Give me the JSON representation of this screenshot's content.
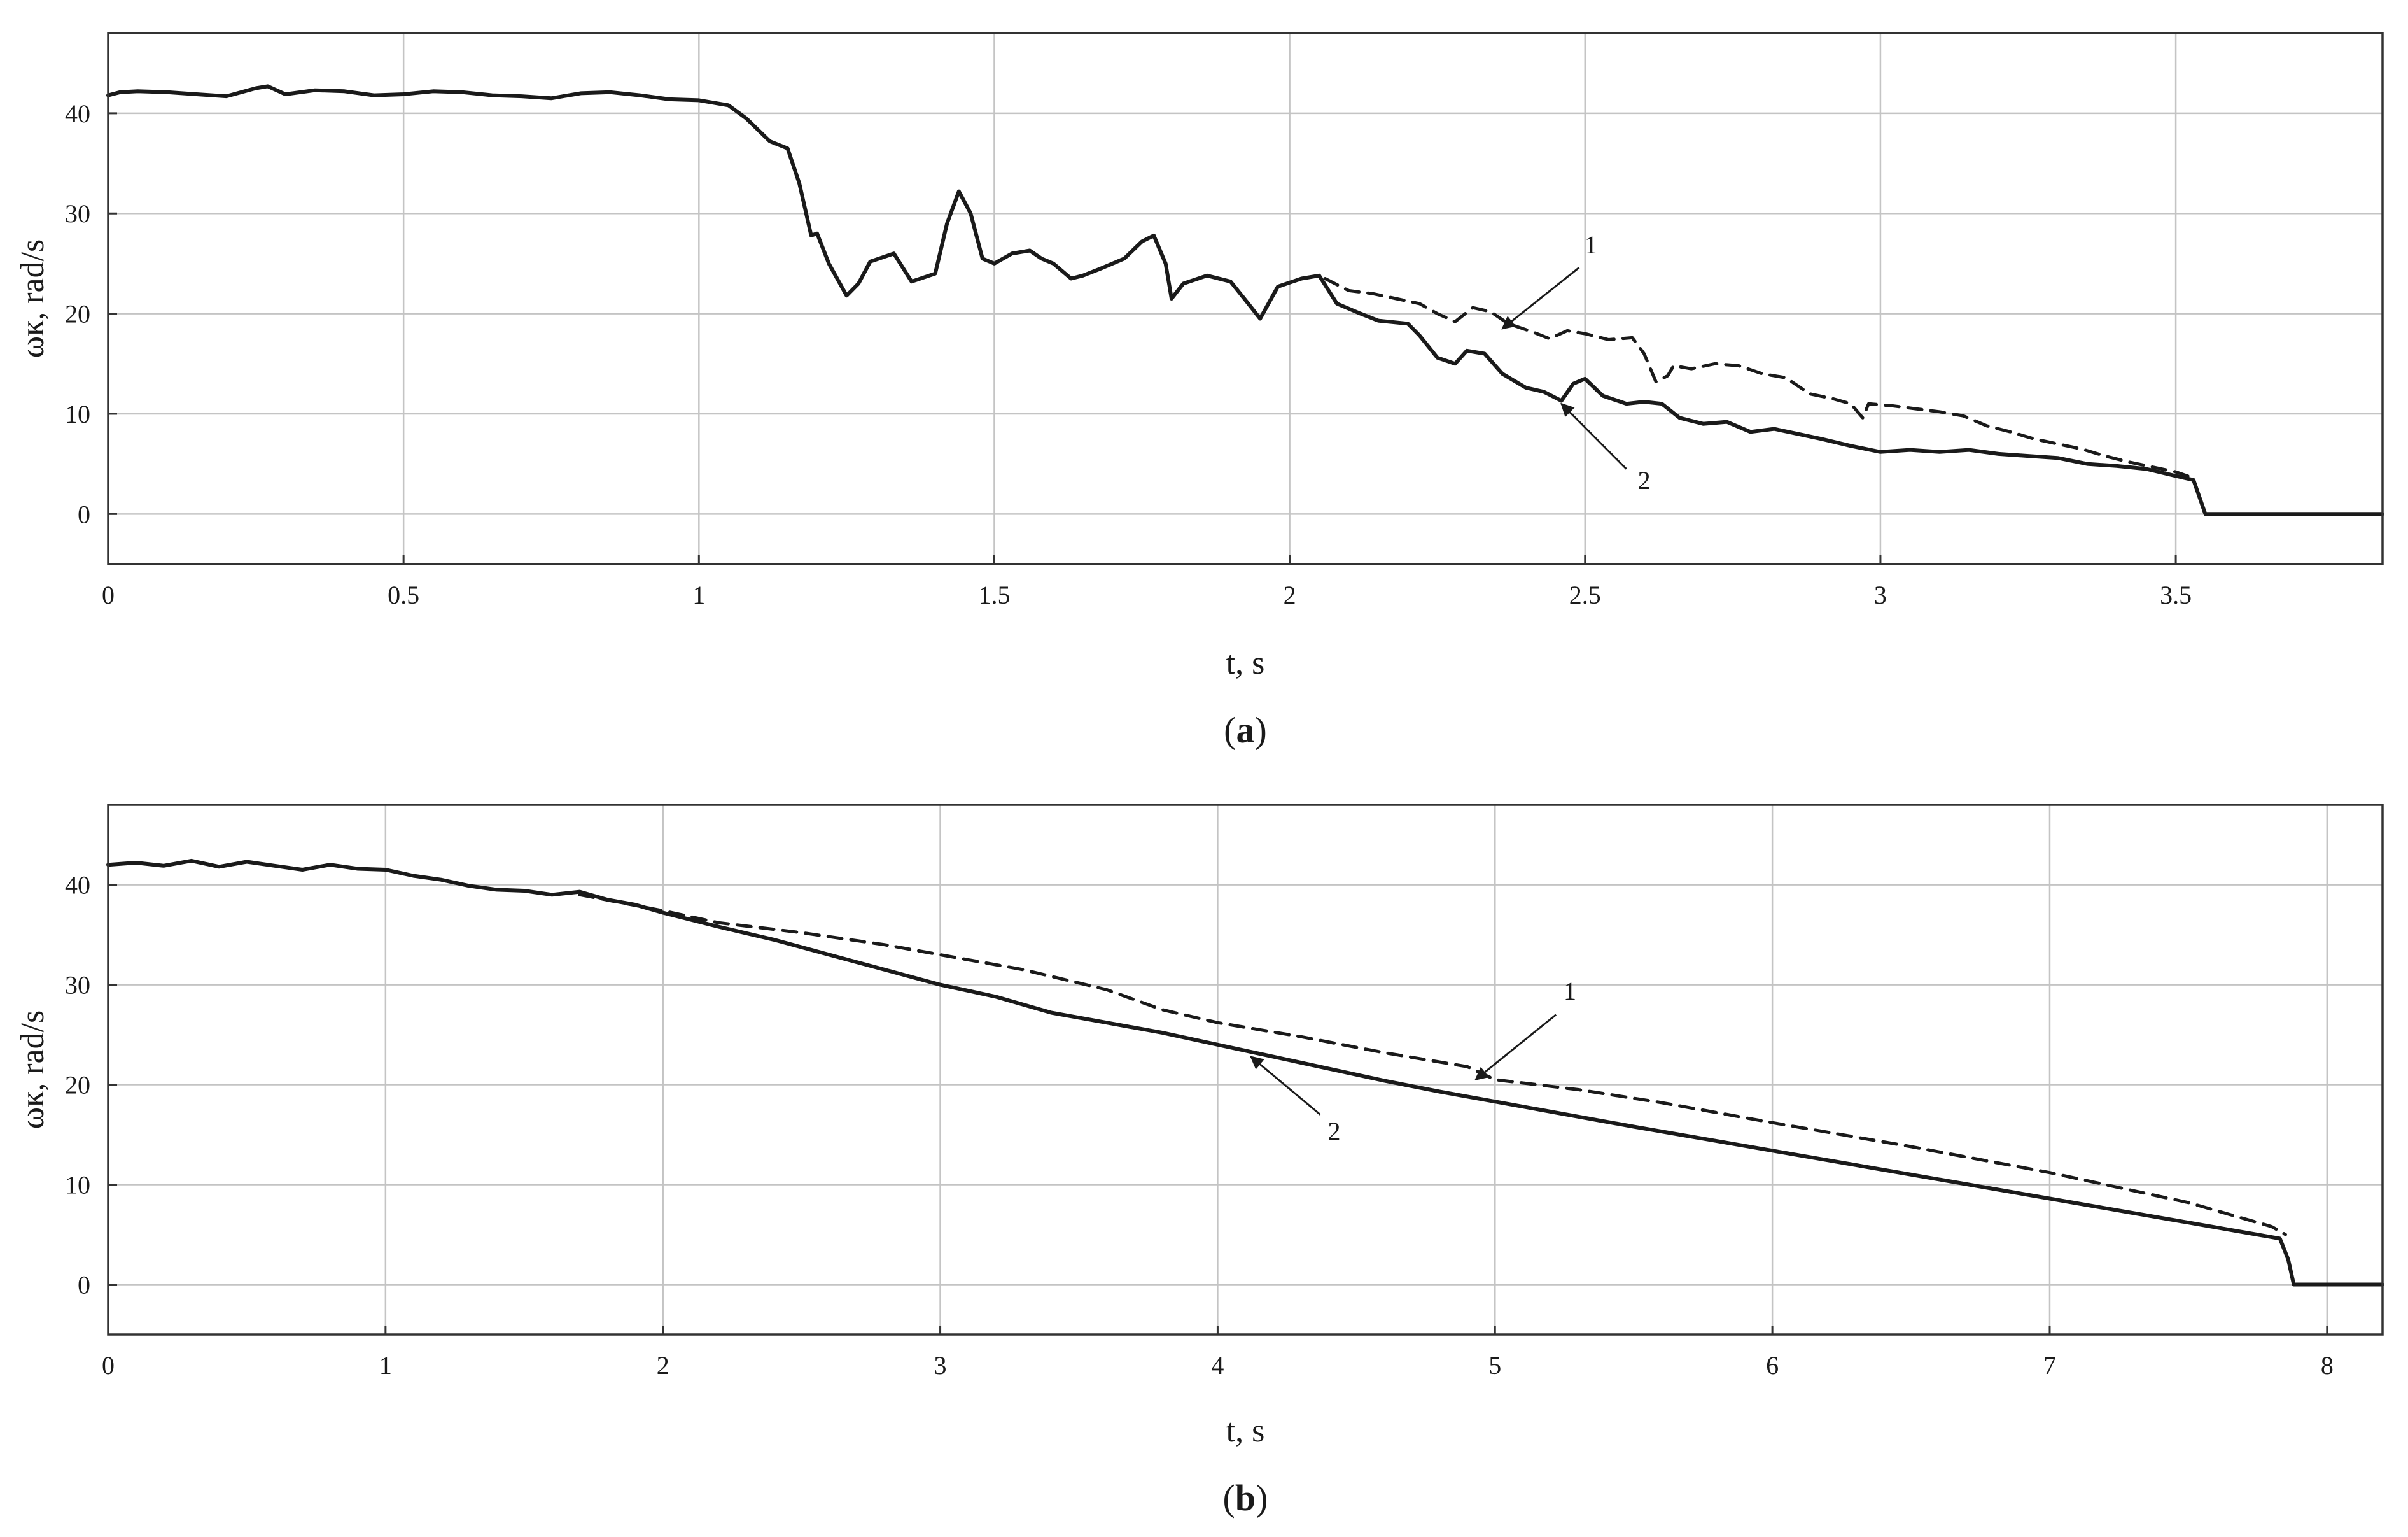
{
  "chart_data": [
    {
      "panel": "a",
      "type": "line",
      "panel_label": "(a)",
      "panel_label_letter": "a",
      "xlabel": "t, s",
      "ylabel": "ωк, rad/s",
      "xlim": [
        0,
        3.85
      ],
      "ylim": [
        -5,
        48
      ],
      "xticks": [
        0,
        0.5,
        1,
        1.5,
        2,
        2.5,
        3,
        3.5
      ],
      "yticks": [
        0,
        10,
        20,
        30,
        40
      ],
      "grid": true,
      "legend": "none",
      "series": [
        {
          "style": "dashed",
          "color": "#1a1a1a",
          "points": [
            [
              2.06,
              23.5
            ],
            [
              2.1,
              22.3
            ],
            [
              2.14,
              22.0
            ],
            [
              2.18,
              21.5
            ],
            [
              2.22,
              21.0
            ],
            [
              2.25,
              20.0
            ],
            [
              2.28,
              19.2
            ],
            [
              2.31,
              20.6
            ],
            [
              2.34,
              20.2
            ],
            [
              2.37,
              19.0
            ],
            [
              2.41,
              18.2
            ],
            [
              2.44,
              17.5
            ],
            [
              2.47,
              18.3
            ],
            [
              2.5,
              18.0
            ],
            [
              2.54,
              17.4
            ],
            [
              2.58,
              17.6
            ],
            [
              2.6,
              16.0
            ],
            [
              2.62,
              13.2
            ],
            [
              2.64,
              13.8
            ],
            [
              2.65,
              14.8
            ],
            [
              2.68,
              14.5
            ],
            [
              2.72,
              15.0
            ],
            [
              2.76,
              14.8
            ],
            [
              2.8,
              14.0
            ],
            [
              2.84,
              13.6
            ],
            [
              2.88,
              12.0
            ],
            [
              2.92,
              11.5
            ],
            [
              2.95,
              11.0
            ],
            [
              2.97,
              9.6
            ],
            [
              2.98,
              11.0
            ],
            [
              3.02,
              10.8
            ],
            [
              3.06,
              10.5
            ],
            [
              3.1,
              10.2
            ],
            [
              3.14,
              9.8
            ],
            [
              3.18,
              8.8
            ],
            [
              3.22,
              8.2
            ],
            [
              3.26,
              7.5
            ],
            [
              3.3,
              7.0
            ],
            [
              3.34,
              6.5
            ],
            [
              3.38,
              5.8
            ],
            [
              3.42,
              5.2
            ],
            [
              3.46,
              4.7
            ],
            [
              3.5,
              4.2
            ],
            [
              3.53,
              3.6
            ]
          ]
        },
        {
          "style": "solid",
          "color": "#1a1a1a",
          "points": [
            [
              0,
              41.8
            ],
            [
              0.02,
              42.1
            ],
            [
              0.05,
              42.2
            ],
            [
              0.1,
              42.1
            ],
            [
              0.15,
              41.9
            ],
            [
              0.2,
              41.7
            ],
            [
              0.25,
              42.5
            ],
            [
              0.27,
              42.7
            ],
            [
              0.3,
              41.9
            ],
            [
              0.35,
              42.3
            ],
            [
              0.4,
              42.2
            ],
            [
              0.45,
              41.8
            ],
            [
              0.5,
              41.9
            ],
            [
              0.55,
              42.2
            ],
            [
              0.6,
              42.1
            ],
            [
              0.65,
              41.8
            ],
            [
              0.7,
              41.7
            ],
            [
              0.75,
              41.5
            ],
            [
              0.8,
              42.0
            ],
            [
              0.85,
              42.1
            ],
            [
              0.9,
              41.8
            ],
            [
              0.95,
              41.4
            ],
            [
              1.0,
              41.3
            ],
            [
              1.05,
              40.8
            ],
            [
              1.08,
              39.5
            ],
            [
              1.12,
              37.2
            ],
            [
              1.15,
              36.5
            ],
            [
              1.17,
              33.0
            ],
            [
              1.19,
              27.8
            ],
            [
              1.2,
              28.0
            ],
            [
              1.22,
              25.0
            ],
            [
              1.25,
              21.8
            ],
            [
              1.27,
              23.0
            ],
            [
              1.29,
              25.2
            ],
            [
              1.33,
              26.0
            ],
            [
              1.36,
              23.2
            ],
            [
              1.4,
              24.0
            ],
            [
              1.42,
              29.0
            ],
            [
              1.44,
              32.2
            ],
            [
              1.46,
              30.0
            ],
            [
              1.48,
              25.5
            ],
            [
              1.5,
              25.0
            ],
            [
              1.53,
              26.0
            ],
            [
              1.56,
              26.3
            ],
            [
              1.58,
              25.5
            ],
            [
              1.6,
              25.0
            ],
            [
              1.63,
              23.5
            ],
            [
              1.65,
              23.8
            ],
            [
              1.68,
              24.5
            ],
            [
              1.72,
              25.5
            ],
            [
              1.75,
              27.2
            ],
            [
              1.77,
              27.8
            ],
            [
              1.79,
              25.0
            ],
            [
              1.8,
              21.5
            ],
            [
              1.82,
              23.0
            ],
            [
              1.86,
              23.8
            ],
            [
              1.9,
              23.2
            ],
            [
              1.93,
              21.0
            ],
            [
              1.95,
              19.5
            ],
            [
              1.98,
              22.7
            ],
            [
              2.02,
              23.5
            ],
            [
              2.05,
              23.8
            ],
            [
              2.08,
              21.0
            ],
            [
              2.12,
              20.0
            ],
            [
              2.15,
              19.3
            ],
            [
              2.2,
              19.0
            ],
            [
              2.22,
              17.8
            ],
            [
              2.25,
              15.6
            ],
            [
              2.28,
              15.0
            ],
            [
              2.3,
              16.3
            ],
            [
              2.33,
              16.0
            ],
            [
              2.36,
              14.0
            ],
            [
              2.4,
              12.6
            ],
            [
              2.43,
              12.2
            ],
            [
              2.46,
              11.3
            ],
            [
              2.48,
              13.0
            ],
            [
              2.5,
              13.5
            ],
            [
              2.53,
              11.8
            ],
            [
              2.57,
              11.0
            ],
            [
              2.6,
              11.2
            ],
            [
              2.63,
              11.0
            ],
            [
              2.66,
              9.6
            ],
            [
              2.7,
              9.0
            ],
            [
              2.74,
              9.2
            ],
            [
              2.78,
              8.2
            ],
            [
              2.82,
              8.5
            ],
            [
              2.86,
              8.0
            ],
            [
              2.9,
              7.5
            ],
            [
              2.95,
              6.8
            ],
            [
              3.0,
              6.2
            ],
            [
              3.05,
              6.4
            ],
            [
              3.1,
              6.2
            ],
            [
              3.15,
              6.4
            ],
            [
              3.2,
              6.0
            ],
            [
              3.25,
              5.8
            ],
            [
              3.3,
              5.6
            ],
            [
              3.35,
              5.0
            ],
            [
              3.4,
              4.8
            ],
            [
              3.45,
              4.5
            ],
            [
              3.5,
              3.8
            ],
            [
              3.53,
              3.4
            ],
            [
              3.55,
              0
            ],
            [
              3.85,
              0
            ]
          ]
        }
      ],
      "annotations": [
        {
          "text": "1",
          "text_at": [
            2.51,
            26.0
          ],
          "arrow_from": [
            2.49,
            24.6
          ],
          "arrow_to": [
            2.36,
            18.5
          ]
        },
        {
          "text": "2",
          "text_at": [
            2.6,
            2.5
          ],
          "arrow_from": [
            2.57,
            4.5
          ],
          "arrow_to": [
            2.46,
            11.0
          ]
        }
      ]
    },
    {
      "panel": "b",
      "type": "line",
      "panel_label": "(b)",
      "panel_label_letter": "b",
      "xlabel": "t, s",
      "ylabel": "ωк, rad/s",
      "xlim": [
        0,
        8.2
      ],
      "ylim": [
        -5,
        48
      ],
      "xticks": [
        0,
        1,
        2,
        3,
        4,
        5,
        6,
        7,
        8
      ],
      "yticks": [
        0,
        10,
        20,
        30,
        40
      ],
      "grid": true,
      "legend": "none",
      "series": [
        {
          "style": "dashed",
          "color": "#1a1a1a",
          "points": [
            [
              1.7,
              39.0
            ],
            [
              2.0,
              37.4
            ],
            [
              2.2,
              36.2
            ],
            [
              2.5,
              35.2
            ],
            [
              2.8,
              34.0
            ],
            [
              3.0,
              33.0
            ],
            [
              3.3,
              31.5
            ],
            [
              3.6,
              29.5
            ],
            [
              3.8,
              27.5
            ],
            [
              4.0,
              26.2
            ],
            [
              4.3,
              24.8
            ],
            [
              4.6,
              23.2
            ],
            [
              4.9,
              21.8
            ],
            [
              5.0,
              20.5
            ],
            [
              5.3,
              19.5
            ],
            [
              5.6,
              18.2
            ],
            [
              6.0,
              16.2
            ],
            [
              6.5,
              13.8
            ],
            [
              7.0,
              11.2
            ],
            [
              7.5,
              8.2
            ],
            [
              7.8,
              5.8
            ],
            [
              7.85,
              5.0
            ]
          ]
        },
        {
          "style": "solid",
          "color": "#1a1a1a",
          "points": [
            [
              0,
              42.0
            ],
            [
              0.1,
              42.2
            ],
            [
              0.2,
              41.9
            ],
            [
              0.3,
              42.4
            ],
            [
              0.4,
              41.8
            ],
            [
              0.5,
              42.3
            ],
            [
              0.6,
              41.9
            ],
            [
              0.7,
              41.5
            ],
            [
              0.8,
              42.0
            ],
            [
              0.9,
              41.6
            ],
            [
              1.0,
              41.5
            ],
            [
              1.1,
              40.9
            ],
            [
              1.2,
              40.5
            ],
            [
              1.3,
              39.9
            ],
            [
              1.4,
              39.5
            ],
            [
              1.5,
              39.4
            ],
            [
              1.6,
              39.0
            ],
            [
              1.7,
              39.3
            ],
            [
              1.8,
              38.5
            ],
            [
              1.9,
              38.0
            ],
            [
              2.0,
              37.2
            ],
            [
              2.2,
              35.8
            ],
            [
              2.4,
              34.5
            ],
            [
              2.6,
              33.0
            ],
            [
              2.8,
              31.5
            ],
            [
              3.0,
              30.0
            ],
            [
              3.2,
              28.8
            ],
            [
              3.4,
              27.2
            ],
            [
              3.6,
              26.2
            ],
            [
              3.8,
              25.2
            ],
            [
              4.0,
              24.0
            ],
            [
              4.2,
              22.8
            ],
            [
              4.4,
              21.6
            ],
            [
              4.6,
              20.4
            ],
            [
              4.8,
              19.3
            ],
            [
              5.0,
              18.3
            ],
            [
              5.5,
              15.8
            ],
            [
              6.0,
              13.4
            ],
            [
              6.5,
              11.0
            ],
            [
              7.0,
              8.6
            ],
            [
              7.5,
              6.2
            ],
            [
              7.83,
              4.6
            ],
            [
              7.86,
              2.5
            ],
            [
              7.88,
              0
            ],
            [
              8.2,
              0
            ]
          ]
        }
      ],
      "annotations": [
        {
          "text": "1",
          "text_at": [
            5.27,
            28.5
          ],
          "arrow_from": [
            5.22,
            27.0
          ],
          "arrow_to": [
            4.93,
            20.5
          ]
        },
        {
          "text": "2",
          "text_at": [
            4.42,
            14.5
          ],
          "arrow_from": [
            4.37,
            17.0
          ],
          "arrow_to": [
            4.12,
            22.8
          ]
        }
      ]
    }
  ]
}
